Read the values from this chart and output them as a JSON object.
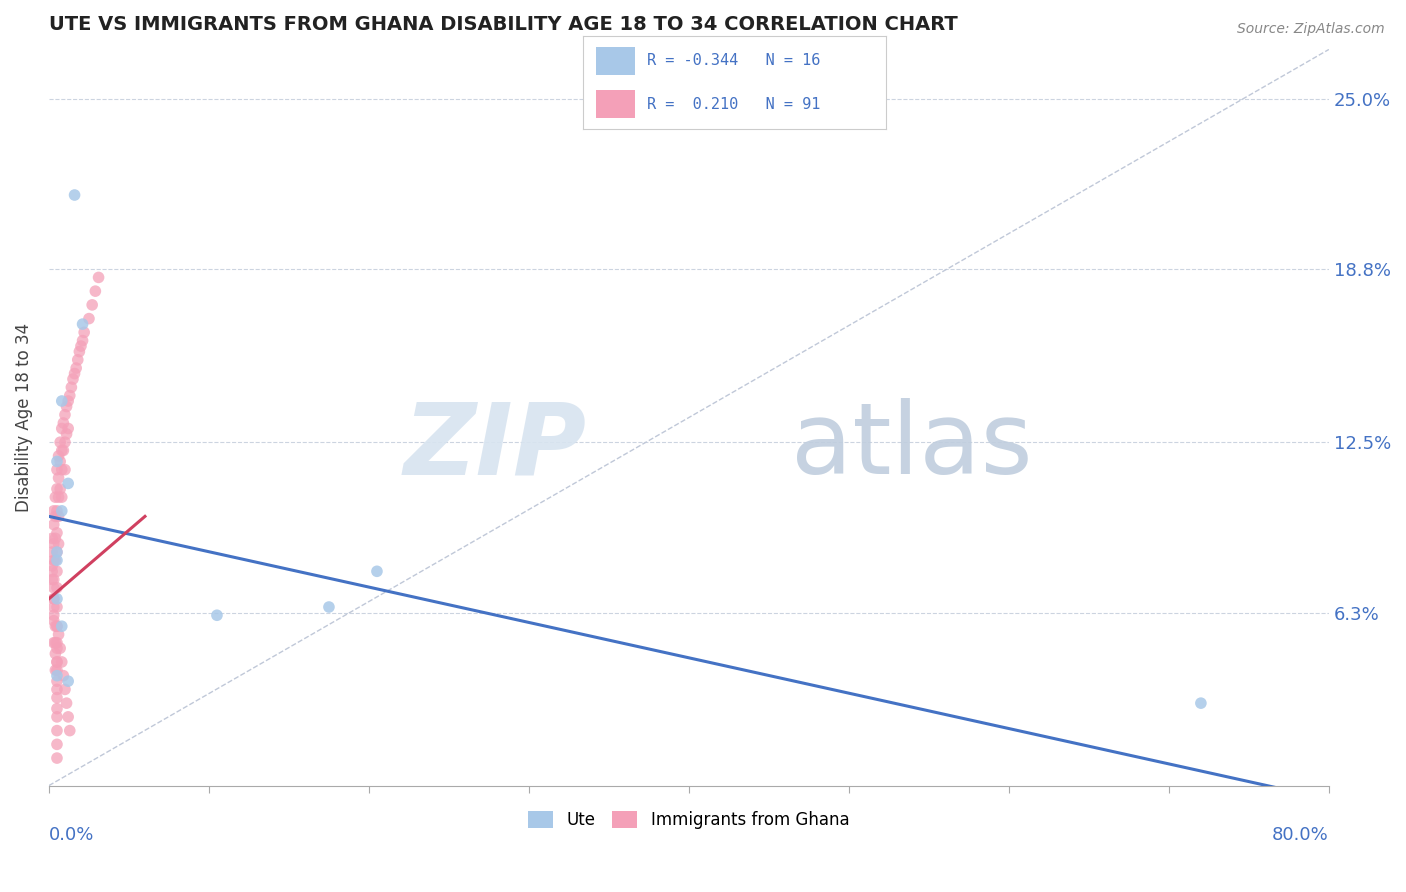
{
  "title": "UTE VS IMMIGRANTS FROM GHANA DISABILITY AGE 18 TO 34 CORRELATION CHART",
  "source": "Source: ZipAtlas.com",
  "ylabel": "Disability Age 18 to 34",
  "ytick_labels": [
    "6.3%",
    "12.5%",
    "18.8%",
    "25.0%"
  ],
  "ytick_values": [
    0.063,
    0.125,
    0.188,
    0.25
  ],
  "xlim": [
    0.0,
    0.8
  ],
  "ylim": [
    0.0,
    0.268
  ],
  "ute_color": "#a8c8e8",
  "ghana_color": "#f4a0b8",
  "ute_line_color": "#4472c4",
  "ghana_line_color": "#d04060",
  "dashed_line_color": "#c0c8d8",
  "watermark_zip_color": "#d8e4f0",
  "watermark_atlas_color": "#c0cede",
  "ute_scatter_x": [
    0.016,
    0.008,
    0.021,
    0.005,
    0.012,
    0.008,
    0.005,
    0.005,
    0.005,
    0.008,
    0.005,
    0.105,
    0.175,
    0.205,
    0.72,
    0.012
  ],
  "ute_scatter_y": [
    0.215,
    0.14,
    0.168,
    0.118,
    0.11,
    0.1,
    0.085,
    0.068,
    0.082,
    0.058,
    0.04,
    0.062,
    0.065,
    0.078,
    0.03,
    0.038
  ],
  "ghana_scatter_x": [
    0.002,
    0.002,
    0.002,
    0.003,
    0.003,
    0.003,
    0.003,
    0.003,
    0.003,
    0.003,
    0.003,
    0.004,
    0.004,
    0.004,
    0.004,
    0.005,
    0.005,
    0.005,
    0.005,
    0.005,
    0.005,
    0.005,
    0.005,
    0.005,
    0.005,
    0.005,
    0.005,
    0.005,
    0.006,
    0.006,
    0.006,
    0.006,
    0.006,
    0.007,
    0.007,
    0.007,
    0.008,
    0.008,
    0.008,
    0.008,
    0.009,
    0.009,
    0.01,
    0.01,
    0.01,
    0.011,
    0.011,
    0.012,
    0.012,
    0.013,
    0.014,
    0.015,
    0.016,
    0.017,
    0.018,
    0.019,
    0.02,
    0.021,
    0.022,
    0.025,
    0.027,
    0.029,
    0.031,
    0.005,
    0.005,
    0.005,
    0.005,
    0.005,
    0.005,
    0.005,
    0.005,
    0.005,
    0.004,
    0.004,
    0.003,
    0.003,
    0.006,
    0.007,
    0.008,
    0.009,
    0.01,
    0.011,
    0.012,
    0.013,
    0.002,
    0.002,
    0.003,
    0.003,
    0.004,
    0.004,
    0.005
  ],
  "ghana_scatter_y": [
    0.09,
    0.08,
    0.075,
    0.1,
    0.095,
    0.088,
    0.082,
    0.075,
    0.068,
    0.06,
    0.052,
    0.105,
    0.098,
    0.09,
    0.082,
    0.115,
    0.108,
    0.1,
    0.092,
    0.085,
    0.078,
    0.072,
    0.065,
    0.058,
    0.05,
    0.042,
    0.035,
    0.028,
    0.12,
    0.112,
    0.105,
    0.098,
    0.088,
    0.125,
    0.118,
    0.108,
    0.13,
    0.122,
    0.115,
    0.105,
    0.132,
    0.122,
    0.135,
    0.125,
    0.115,
    0.138,
    0.128,
    0.14,
    0.13,
    0.142,
    0.145,
    0.148,
    0.15,
    0.152,
    0.155,
    0.158,
    0.16,
    0.162,
    0.165,
    0.17,
    0.175,
    0.18,
    0.185,
    0.058,
    0.052,
    0.045,
    0.038,
    0.032,
    0.025,
    0.02,
    0.015,
    0.01,
    0.048,
    0.042,
    0.068,
    0.062,
    0.055,
    0.05,
    0.045,
    0.04,
    0.035,
    0.03,
    0.025,
    0.02,
    0.085,
    0.078,
    0.072,
    0.065,
    0.058,
    0.052,
    0.045
  ],
  "ute_line_x0": 0.0,
  "ute_line_y0": 0.098,
  "ute_line_x1": 0.8,
  "ute_line_y1": -0.005,
  "ghana_line_x0": 0.0,
  "ghana_line_y0": 0.068,
  "ghana_line_x1": 0.06,
  "ghana_line_y1": 0.098
}
